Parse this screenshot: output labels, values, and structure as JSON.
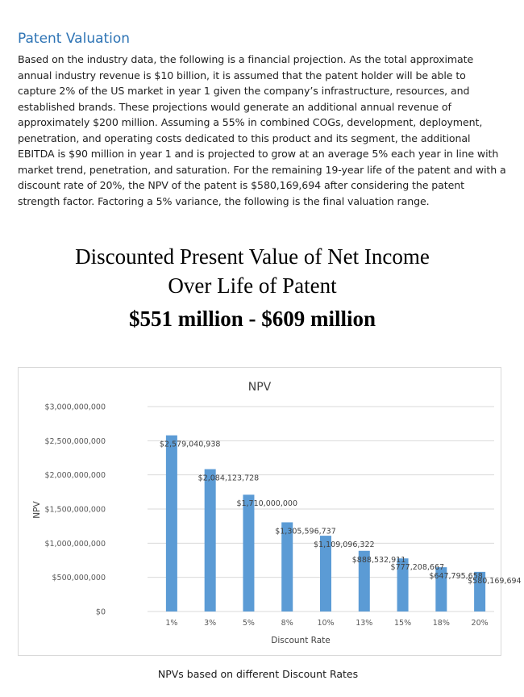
{
  "section": {
    "title": "Patent Valuation",
    "paragraph": "Based on the industry data, the following is a financial projection. As the total approximate annual industry revenue is $10 billion, it is assumed that the patent holder will be able to capture 2% of the US market in year 1 given the company’s infrastructure, resources, and established brands. These projections would generate an additional annual revenue of approximately $200 million. Assuming a 55% in combined COGs, development, deployment, penetration, and operating costs dedicated to this product and its segment, the additional EBITDA is $90 million in year 1 and is projected to grow at an average 5% each year in line with market trend, penetration, and saturation. For the remaining 19-year life of the patent and with a discount rate of 20%, the NPV of the patent is $580,169,694 after considering the patent strength factor. Factoring a 5% variance, the following is the final valuation range."
  },
  "summary": {
    "line1": "Discounted Present Value of Net Income",
    "line2": "Over Life of Patent",
    "range": "$551 million - $609 million"
  },
  "chart_data": {
    "type": "bar",
    "title": "NPV",
    "xlabel": "Discount Rate",
    "ylabel": "NPV",
    "categories": [
      "1%",
      "3%",
      "5%",
      "8%",
      "10%",
      "13%",
      "15%",
      "18%",
      "20%"
    ],
    "values": [
      2579040938,
      2084123728,
      1710000000,
      1305596737,
      1109096322,
      888532911,
      777208667,
      647795658,
      580169694
    ],
    "data_labels": [
      "$2,579,040,938",
      "$2,084,123,728",
      "$1,710,000,000",
      "$1,305,596,737",
      "$1,109,096,322",
      "$888,532,911",
      "$777,208,667",
      "$647,795,658",
      "$580,169,694"
    ],
    "yticks": [
      0,
      500000000,
      1000000000,
      1500000000,
      2000000000,
      2500000000,
      3000000000
    ],
    "ytick_labels": [
      "$0",
      "$500,000,000",
      "$1,000,000,000",
      "$1,500,000,000",
      "$2,000,000,000",
      "$2,500,000,000",
      "$3,000,000,000"
    ],
    "ylim": [
      0,
      3000000000
    ],
    "grid": true,
    "legend": "none",
    "bar_color": "#5b9bd5"
  },
  "caption": "NPVs based on different Discount Rates"
}
